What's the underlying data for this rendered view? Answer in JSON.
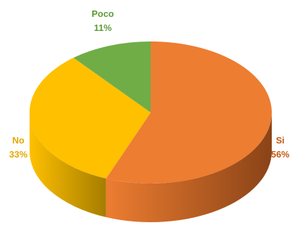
{
  "chart_data": {
    "type": "pie",
    "style": "3d",
    "title": "",
    "slices": [
      {
        "label": "Si",
        "value": 56,
        "value_label": "56%",
        "color": "#ED7D31",
        "side_color": "#8A4317",
        "label_color": "#C55A11"
      },
      {
        "label": "No",
        "value": 33,
        "value_label": "33%",
        "color": "#FFC000",
        "side_color": "#A57D00",
        "label_color": "#E3A800"
      },
      {
        "label": "Poco",
        "value": 11,
        "value_label": "11%",
        "color": "#70AD47",
        "side_color": "#3E6B22",
        "label_color": "#5E9C35"
      }
    ],
    "legend": "none"
  }
}
